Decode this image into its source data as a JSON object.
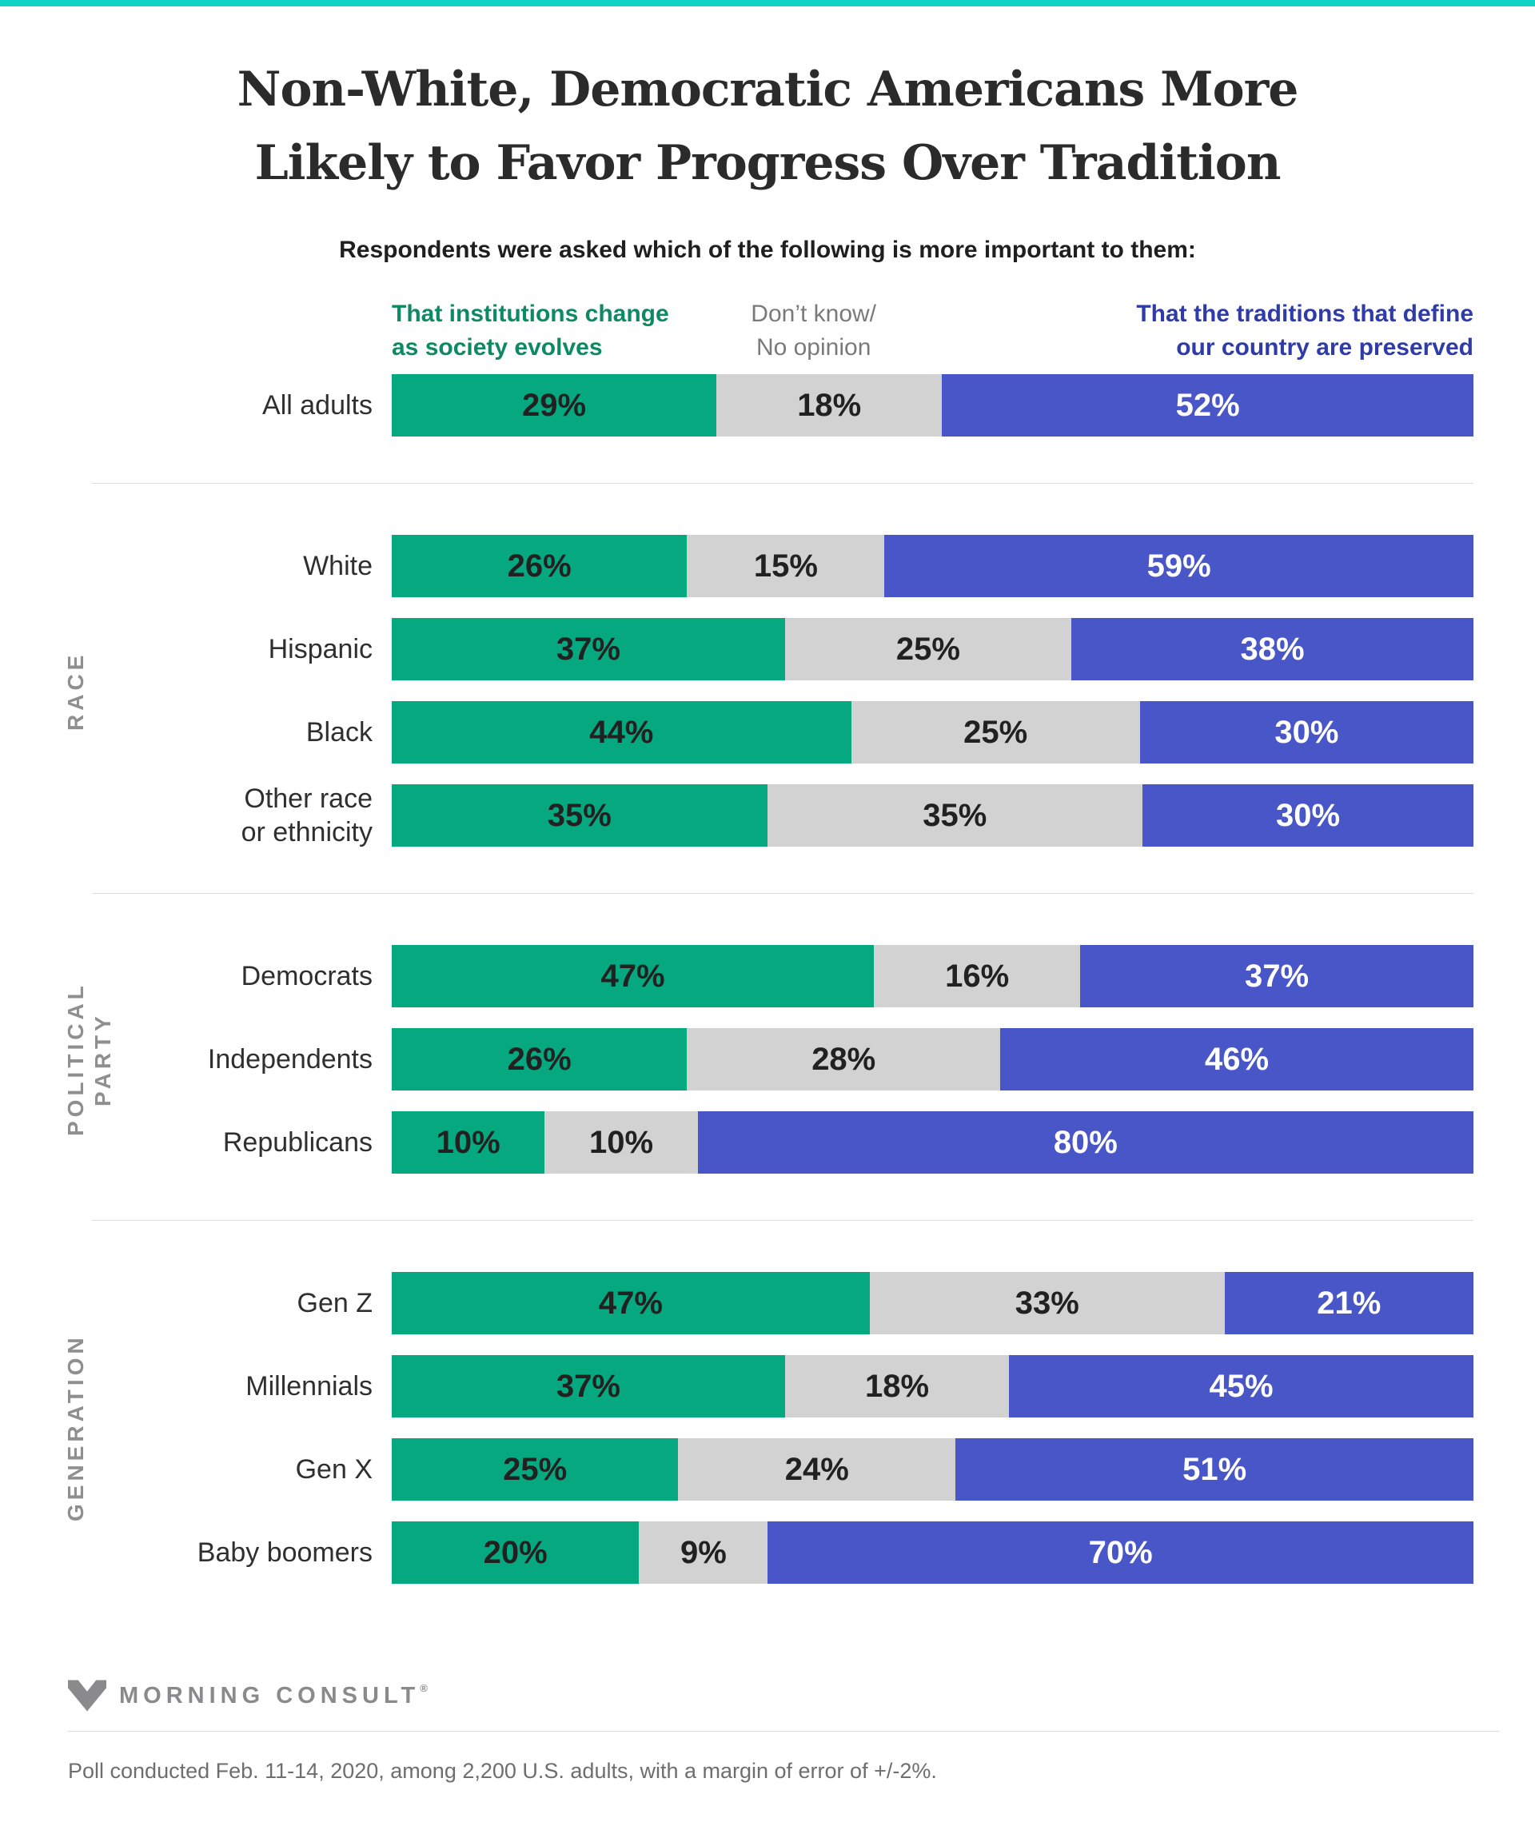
{
  "accent_color": "#11D3C5",
  "title": {
    "line1": "Non-White, Democratic Americans More",
    "line2": "Likely to Favor Progress Over Tradition"
  },
  "subtitle": "Respondents were asked which of the following is more important to them:",
  "legend": {
    "progress": "That institutions change\nas society evolves",
    "neutral": "Don’t know/\nNo opinion",
    "tradition": "That the traditions that define\nour country are preserved"
  },
  "colors": {
    "accent": "#11D3C5",
    "bar_progress": "#05A87F",
    "bar_neutral": "#D2D2D2",
    "bar_tradition": "#4856C8",
    "legend_progress_text": "#0E8A63",
    "legend_tradition_text": "#2E3BA8"
  },
  "chart_data": {
    "type": "bar",
    "orientation": "horizontal",
    "stacked": true,
    "unit": "%",
    "axis_range": [
      0,
      100
    ],
    "grid": false,
    "series_names": [
      "That institutions change as society evolves",
      "Don’t know/No opinion",
      "That the traditions that define our country are preserved"
    ],
    "sections": [
      {
        "label": "",
        "rows": [
          {
            "label": "All adults",
            "values": [
              29,
              18,
              52
            ]
          }
        ]
      },
      {
        "label": "RACE",
        "rows": [
          {
            "label": "White",
            "values": [
              26,
              15,
              59
            ]
          },
          {
            "label": "Hispanic",
            "values": [
              37,
              25,
              38
            ]
          },
          {
            "label": "Black",
            "values": [
              44,
              25,
              30
            ]
          },
          {
            "label": "Other race\nor ethnicity",
            "values": [
              35,
              35,
              30
            ]
          }
        ]
      },
      {
        "label": "POLITICAL\nPARTY",
        "rows": [
          {
            "label": "Democrats",
            "values": [
              47,
              16,
              37
            ]
          },
          {
            "label": "Independents",
            "values": [
              26,
              28,
              46
            ]
          },
          {
            "label": "Republicans",
            "values": [
              10,
              10,
              80
            ]
          }
        ]
      },
      {
        "label": "GENERATION",
        "rows": [
          {
            "label": "Gen Z",
            "values": [
              47,
              33,
              21
            ]
          },
          {
            "label": "Millennials",
            "values": [
              37,
              18,
              45
            ]
          },
          {
            "label": "Gen X",
            "values": [
              25,
              24,
              51
            ]
          },
          {
            "label": "Baby boomers",
            "values": [
              20,
              9,
              70
            ]
          }
        ]
      }
    ]
  },
  "footer": {
    "brand": "MORNING CONSULT",
    "trademark": "®",
    "source_note": "Poll conducted Feb. 11-14, 2020, among 2,200 U.S. adults, with a margin of error of +/-2%."
  }
}
